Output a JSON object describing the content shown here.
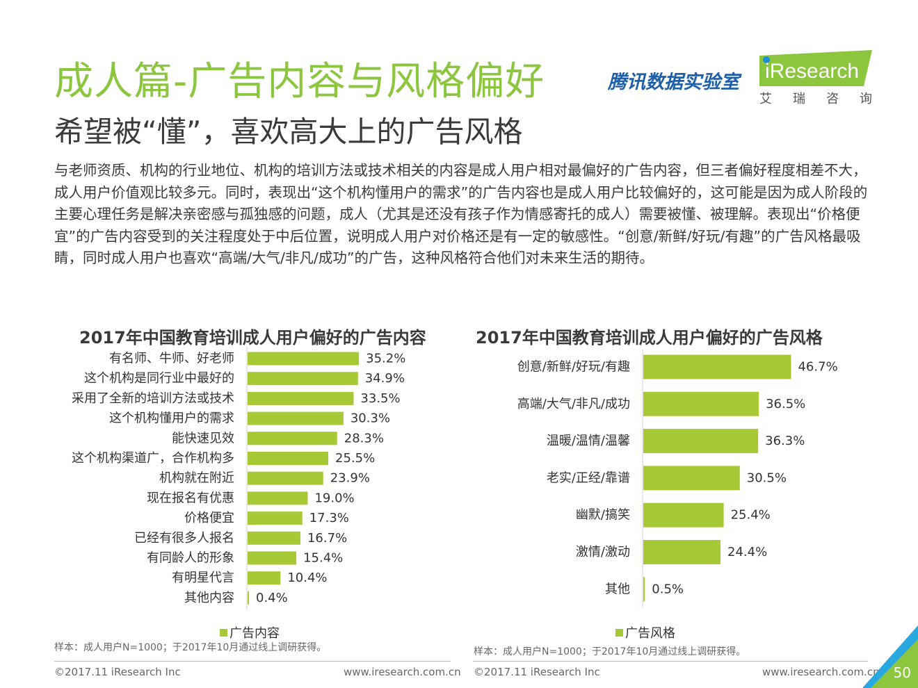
{
  "header": {
    "title": "成人篇-广告内容与风格偏好",
    "subtitle": "希望被“懂”，喜欢高大上的广告风格",
    "body": "与老师资质、机构的行业地位、机构的培训方法或技术相关的内容是成人用户相对最偏好的广告内容，但三者偏好程度相差不大，成人用户价值观比较多元。同时，表现出“这个机构懂用户的需求”的广告内容也是成人用户比较偏好的，这可能是因为成人阶段的主要心理任务是解决亲密感与孤独感的问题，成人（尤其是还没有孩子作为情感寄托的成人）需要被懂、被理解。表现出“价格便宜”的广告内容受到的关注程度处于中后位置，说明成人用户对价格还是有一定的敏感性。“创意/新鲜/好玩/有趣”的广告风格最吸睛，同时成人用户也喜欢“高端/大气/非凡/成功”的广告，这种风格符合他们对未来生活的期待。"
  },
  "logos": {
    "tencent": "腾讯数据实验室",
    "iresearch": "iResearch",
    "iresearch_cn": [
      "艾",
      "瑞",
      "咨",
      "询"
    ]
  },
  "colors": {
    "bar": "#a7c936",
    "title_green": "#8cc63f",
    "corner": "#8cc63f",
    "corner_blue": "#29a8e0"
  },
  "chart_data": [
    {
      "type": "bar",
      "orientation": "horizontal",
      "title": "2017年中国教育培训成人用户偏好的广告内容",
      "categories": [
        "有名师、牛师、好老师",
        "这个机构是同行业中最好的",
        "采用了全新的培训方法或技术",
        "这个机构懂用户的需求",
        "能快速见效",
        "这个机构渠道广，合作机构多",
        "机构就在附近",
        "现在报名有优惠",
        "价格便宜",
        "已经有很多人报名",
        "有同龄人的形象",
        "有明星代言",
        "其他内容"
      ],
      "series": [
        {
          "name": "广告内容",
          "values": [
            35.2,
            34.9,
            33.5,
            30.3,
            28.3,
            25.5,
            23.9,
            19.0,
            17.3,
            16.7,
            15.4,
            10.4,
            0.4
          ]
        }
      ],
      "data_labels": [
        "35.2%",
        "34.9%",
        "33.5%",
        "30.3%",
        "28.3%",
        "25.5%",
        "23.9%",
        "19.0%",
        "17.3%",
        "16.7%",
        "15.4%",
        "10.4%",
        "0.4%"
      ],
      "legend": "bottom",
      "note": "样本：成人用户N=1000；于2017年10月通过线上调研获得。"
    },
    {
      "type": "bar",
      "orientation": "horizontal",
      "title": "2017年中国教育培训成人用户偏好的广告风格",
      "categories": [
        "创意/新鲜/好玩/有趣",
        "高端/大气/非凡/成功",
        "温暖/温情/温馨",
        "老实/正经/靠谱",
        "幽默/搞笑",
        "激情/激动",
        "其他"
      ],
      "series": [
        {
          "name": "广告风格",
          "values": [
            46.7,
            36.5,
            36.3,
            30.5,
            25.4,
            24.4,
            0.5
          ]
        }
      ],
      "data_labels": [
        "46.7%",
        "36.5%",
        "36.3%",
        "30.5%",
        "25.4%",
        "24.4%",
        "0.5%"
      ],
      "legend": "bottom",
      "note": "样本：成人用户N=1000；于2017年10月通过线上调研获得。"
    }
  ],
  "footer": {
    "copyright": "©2017.11 iResearch Inc",
    "url": "www.iresearch.com.cn",
    "page": "50"
  }
}
